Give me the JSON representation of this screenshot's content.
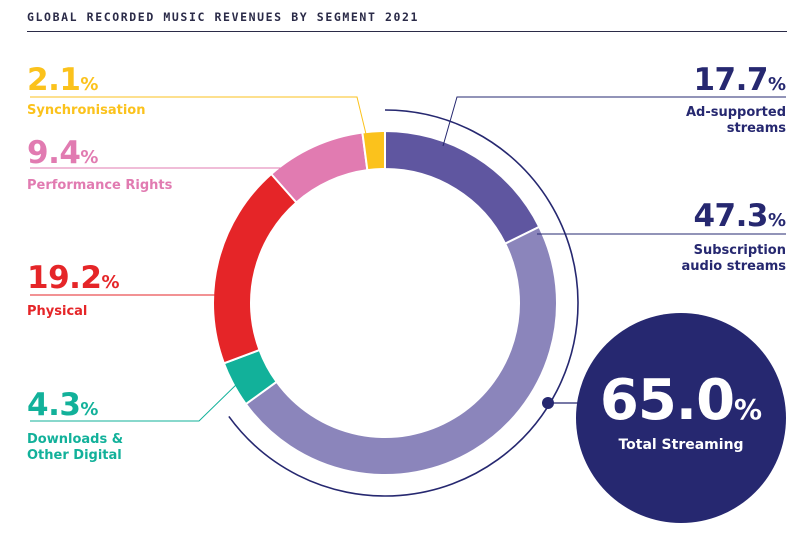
{
  "header": {
    "title": "GLOBAL RECORDED MUSIC REVENUES BY SEGMENT 2021"
  },
  "chart_data": {
    "type": "pie",
    "title": "GLOBAL RECORDED MUSIC REVENUES BY SEGMENT 2021",
    "unit": "%",
    "slices": [
      {
        "name": "Ad-supported streams",
        "value": 17.7,
        "display": "17.7",
        "color": "#5f56a0"
      },
      {
        "name": "Subscription audio streams",
        "value": 47.3,
        "display": "47.3",
        "color": "#8b85bb"
      },
      {
        "name": "Downloads & Other Digital",
        "value": 4.3,
        "display": "4.3",
        "color": "#12b19a"
      },
      {
        "name": "Physical",
        "value": 19.2,
        "display": "19.2",
        "color": "#e52528"
      },
      {
        "name": "Performance Rights",
        "value": 9.4,
        "display": "9.4",
        "color": "#e17bb1"
      },
      {
        "name": "Synchronisation",
        "value": 2.1,
        "display": "2.1",
        "color": "#fbc21c"
      }
    ],
    "total_streaming": {
      "value": 65.0,
      "display": "65.0",
      "label": "Total Streaming",
      "color": "#262870"
    }
  },
  "labels": {
    "synchronisation": {
      "value": "2.1",
      "pct": "%",
      "name": "Synchronisation"
    },
    "performance": {
      "value": "9.4",
      "pct": "%",
      "name": "Performance Rights"
    },
    "physical": {
      "value": "19.2",
      "pct": "%",
      "name": "Physical"
    },
    "downloads": {
      "value": "4.3",
      "pct": "%",
      "name1": "Downloads &",
      "name2": "Other Digital"
    },
    "adsupported": {
      "value": "17.7",
      "pct": "%",
      "name1": "Ad-supported",
      "name2": "streams"
    },
    "subscription": {
      "value": "47.3",
      "pct": "%",
      "name1": "Subscription",
      "name2": "audio streams"
    },
    "total": {
      "value": "65.0",
      "pct": "%",
      "name": "Total Streaming"
    }
  }
}
